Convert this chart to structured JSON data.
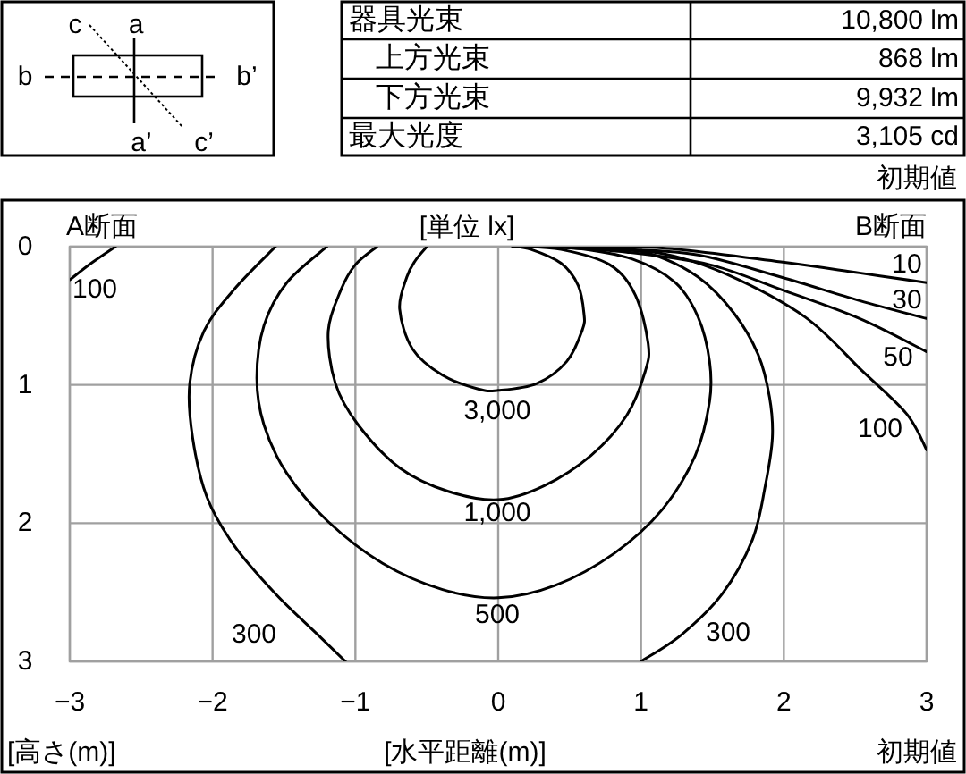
{
  "chart_data": [
    {
      "type": "other",
      "annotations": [
        "c",
        "a",
        "b",
        "b’",
        "a’",
        "c’",
        "器具光束",
        "10,800 lm",
        "上方光束",
        "868 lm",
        "下方光束",
        "9,932 lm",
        "最大光度",
        "3,105 cd",
        "初期値"
      ]
    },
    {
      "type": "line",
      "xlabel": "[水平距離(m)]",
      "ylabel": "[高さ(m)]",
      "xlim": [
        -3,
        3
      ],
      "ylim": [
        3,
        0
      ],
      "xticks": [
        -3,
        -2,
        -1,
        0,
        1,
        2,
        3
      ],
      "yticks": [
        0,
        1,
        2,
        3
      ],
      "grid": true,
      "series": [
        {
          "name": "3,000",
          "color": "#000000",
          "x": [
            -0.5,
            -0.58,
            -0.64,
            -0.69,
            -0.6,
            -0.39,
            -0.14,
            0,
            0.27,
            0.48,
            0.59,
            0.6,
            0.56,
            0.44,
            0.23,
            0.1
          ],
          "values": [
            0,
            0.1,
            0.22,
            0.45,
            0.74,
            0.93,
            1.03,
            1.04,
            0.99,
            0.83,
            0.6,
            0.48,
            0.28,
            0.12,
            0.02,
            0
          ]
        },
        {
          "name": "1,000",
          "color": "#000000",
          "x": [
            -0.85,
            -1.0,
            -1.1,
            -1.19,
            -1.14,
            -0.98,
            -0.69,
            -0.35,
            0,
            0.32,
            0.65,
            0.9,
            1.03,
            1.05,
            0.96,
            0.78,
            0.44,
            0.15
          ],
          "values": [
            0,
            0.13,
            0.31,
            0.61,
            0.99,
            1.29,
            1.6,
            1.77,
            1.83,
            1.73,
            1.51,
            1.22,
            0.9,
            0.7,
            0.35,
            0.13,
            0.02,
            0
          ]
        },
        {
          "name": "500",
          "color": "#000000",
          "x": [
            -1.2,
            -1.48,
            -1.64,
            -1.69,
            -1.64,
            -1.48,
            -1.19,
            -0.81,
            -0.39,
            0,
            0.4,
            0.81,
            1.15,
            1.38,
            1.48,
            1.48,
            1.4,
            1.24,
            0.94,
            0.53,
            0.2
          ],
          "values": [
            0,
            0.26,
            0.57,
            0.95,
            1.29,
            1.64,
            1.99,
            2.29,
            2.48,
            2.54,
            2.45,
            2.22,
            1.9,
            1.51,
            1.12,
            0.83,
            0.51,
            0.26,
            0.09,
            0.01,
            0
          ]
        },
        {
          "name": "300",
          "color": "#000000",
          "x": [
            -1.56,
            -1.85,
            -2.06,
            -2.16,
            -2.14,
            -2.04,
            -1.85,
            -1.56,
            -1.26,
            -1.07,
            null,
            1.0,
            1.28,
            1.57,
            1.78,
            1.87,
            1.92,
            1.9,
            1.82,
            1.65,
            1.4,
            1.06,
            0.73,
            0.25
          ],
          "values": [
            0,
            0.31,
            0.61,
            0.99,
            1.38,
            1.81,
            2.16,
            2.51,
            2.81,
            3,
            null,
            3,
            2.81,
            2.51,
            2.12,
            1.73,
            1.38,
            1.09,
            0.78,
            0.48,
            0.22,
            0.05,
            0.01,
            0
          ]
        },
        {
          "name": "100",
          "color": "#000000",
          "x": [
            -2.68,
            -2.85,
            -3,
            null,
            0.3,
            0.7,
            1.15,
            1.6,
            2.15,
            2.55,
            2.86,
            3
          ],
          "values": [
            0,
            0.12,
            0.24,
            null,
            0,
            0.02,
            0.05,
            0.2,
            0.51,
            0.9,
            1.21,
            1.47
          ]
        },
        {
          "name": "50",
          "color": "#000000",
          "x": [
            0.35,
            0.9,
            1.48,
            1.98,
            2.53,
            3
          ],
          "values": [
            0,
            0.04,
            0.13,
            0.31,
            0.52,
            0.76
          ]
        },
        {
          "name": "30",
          "color": "#000000",
          "x": [
            0.4,
            0.9,
            1.4,
            1.98,
            2.53,
            3
          ],
          "values": [
            0,
            0.02,
            0.06,
            0.22,
            0.39,
            0.52
          ]
        },
        {
          "name": "10",
          "color": "#000000",
          "x": [
            0.45,
            1.15,
            1.98,
            2.53,
            3
          ],
          "values": [
            0,
            0.01,
            0.11,
            0.19,
            0.26
          ]
        }
      ],
      "annotations": [
        "A断面",
        "[単位 lx]",
        "B断面",
        "初期値"
      ]
    }
  ]
}
